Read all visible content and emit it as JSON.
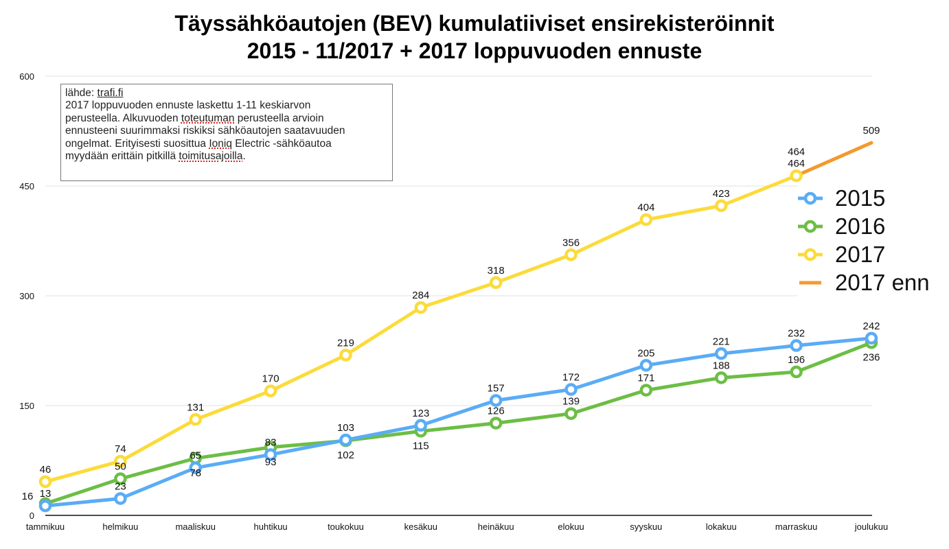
{
  "chart_data": {
    "type": "line",
    "title": "Täyssähköautojen (BEV) kumulatiiviset ensirekisteröinnit",
    "subtitle": "2015 - 11/2017 + 2017 loppuvuoden ennuste",
    "xlabel": "",
    "ylabel": "",
    "ylim": [
      0,
      600
    ],
    "yticks": [
      0,
      150,
      300,
      450,
      600
    ],
    "grid": true,
    "legend_position": "right",
    "categories": [
      "tammikuu",
      "helmikuu",
      "maaliskuu",
      "huhtikuu",
      "toukokuu",
      "kesäkuu",
      "heinäkuu",
      "elokuu",
      "syyskuu",
      "lokakuu",
      "marraskuu",
      "joulukuu"
    ],
    "series": [
      {
        "name": "2015",
        "color": "#5aacf5",
        "markers": true,
        "values": [
          13,
          23,
          65,
          83,
          103,
          123,
          157,
          172,
          205,
          221,
          232,
          242
        ]
      },
      {
        "name": "2016",
        "color": "#6cbe45",
        "markers": true,
        "values": [
          16,
          50,
          78,
          93,
          102,
          115,
          126,
          139,
          171,
          188,
          196,
          236
        ]
      },
      {
        "name": "2017",
        "color": "#fcdb3a",
        "markers": true,
        "values": [
          46,
          74,
          131,
          170,
          219,
          284,
          318,
          356,
          404,
          423,
          464,
          null
        ]
      },
      {
        "name": "2017 enn",
        "color": "#f39a2e",
        "markers": false,
        "values": [
          null,
          null,
          null,
          null,
          null,
          null,
          null,
          null,
          null,
          null,
          464,
          509
        ]
      }
    ]
  },
  "annotation": {
    "source_prefix": "lähde: ",
    "source_link": "trafi.fi",
    "lines": [
      [
        "2017 loppuvuoden ennuste laskettu 1-11 keskiarvon"
      ],
      [
        "perusteella. Alkuvuoden ",
        "toteutuman",
        " perusteella arvioin"
      ],
      [
        "ennusteeni suurimmaksi riskiksi sähköautojen saatavuuden"
      ],
      [
        "ongelmat. Erityisesti suosittua ",
        "Ioniq",
        " Electric -sähköautoa"
      ],
      [
        "myydään erittäin pitkillä ",
        "toimitusajoilla",
        "."
      ]
    ]
  }
}
